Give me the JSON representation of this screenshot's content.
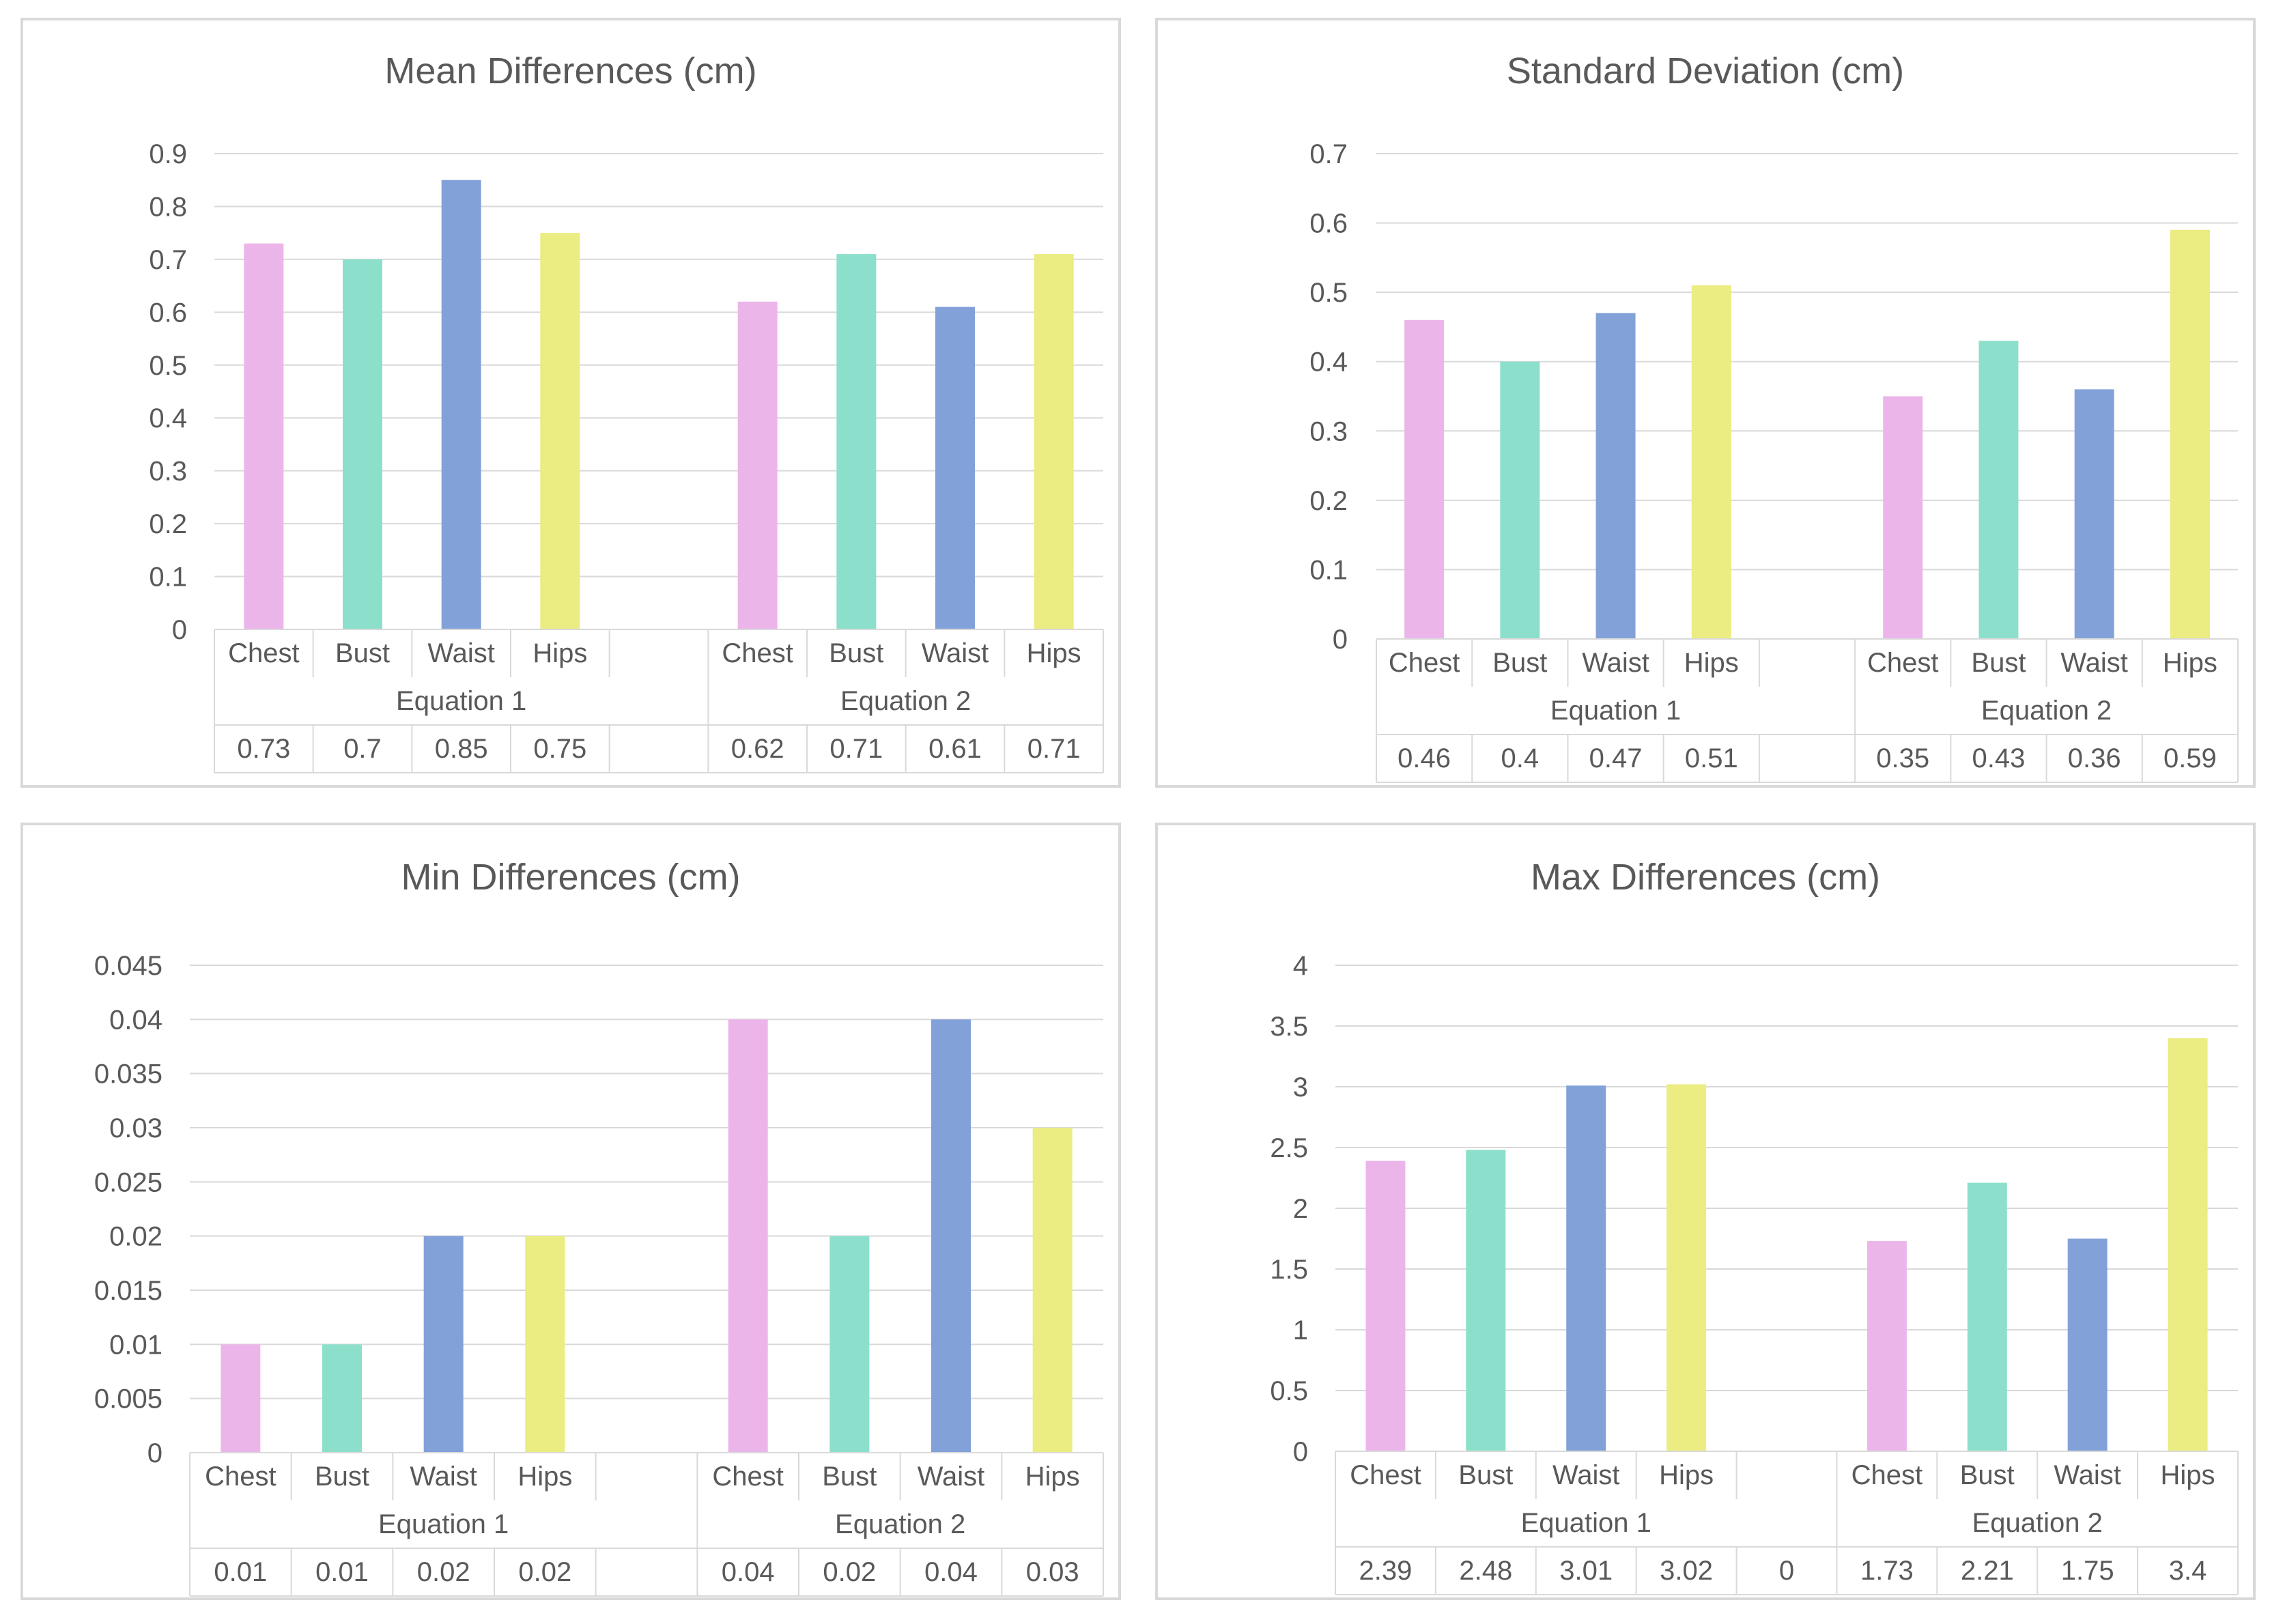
{
  "palette": {
    "Chest": "#ecb5ea",
    "Bust": "#8ce0cb",
    "Waist": "#83a1d9",
    "Hips": "#ebec81",
    "grid": "#d9d9d9",
    "text": "#595959"
  },
  "chart_data": [
    {
      "type": "bar",
      "title": "Mean Differences (cm)",
      "groups": [
        "Equation 1",
        "Equation 2"
      ],
      "categories": [
        "Chest",
        "Bust",
        "Waist",
        "Hips"
      ],
      "series": [
        {
          "name": "Equation 1",
          "values": [
            0.73,
            0.7,
            0.85,
            0.75
          ]
        },
        {
          "name": "Equation 2",
          "values": [
            0.62,
            0.71,
            0.61,
            0.71
          ]
        }
      ],
      "table": {
        "group1": [
          "0.73",
          "0.7",
          "0.85",
          "0.75"
        ],
        "gap": "",
        "group2": [
          "0.62",
          "0.71",
          "0.61",
          "0.71"
        ]
      },
      "ylim": [
        0,
        0.9
      ],
      "yticks": [
        "0",
        "0.1",
        "0.2",
        "0.3",
        "0.4",
        "0.5",
        "0.6",
        "0.7",
        "0.8",
        "0.9"
      ]
    },
    {
      "type": "bar",
      "title": "Standard Deviation (cm)",
      "groups": [
        "Equation 1",
        "Equation 2"
      ],
      "categories": [
        "Chest",
        "Bust",
        "Waist",
        "Hips"
      ],
      "series": [
        {
          "name": "Equation 1",
          "values": [
            0.46,
            0.4,
            0.47,
            0.51
          ]
        },
        {
          "name": "Equation 2",
          "values": [
            0.35,
            0.43,
            0.36,
            0.59
          ]
        }
      ],
      "table": {
        "group1": [
          "0.46",
          "0.4",
          "0.47",
          "0.51"
        ],
        "gap": "",
        "group2": [
          "0.35",
          "0.43",
          "0.36",
          "0.59"
        ]
      },
      "ylim": [
        0,
        0.7
      ],
      "yticks": [
        "0",
        "0.1",
        "0.2",
        "0.3",
        "0.4",
        "0.5",
        "0.6",
        "0.7"
      ]
    },
    {
      "type": "bar",
      "title": "Min Differences (cm)",
      "groups": [
        "Equation 1",
        "Equation 2"
      ],
      "categories": [
        "Chest",
        "Bust",
        "Waist",
        "Hips"
      ],
      "series": [
        {
          "name": "Equation 1",
          "values": [
            0.01,
            0.01,
            0.02,
            0.02
          ]
        },
        {
          "name": "Equation 2",
          "values": [
            0.04,
            0.02,
            0.04,
            0.03
          ]
        }
      ],
      "table": {
        "group1": [
          "0.01",
          "0.01",
          "0.02",
          "0.02"
        ],
        "gap": "",
        "group2": [
          "0.04",
          "0.02",
          "0.04",
          "0.03"
        ]
      },
      "ylim": [
        0,
        0.045
      ],
      "yticks": [
        "0",
        "0.005",
        "0.01",
        "0.015",
        "0.02",
        "0.025",
        "0.03",
        "0.035",
        "0.04",
        "0.045"
      ]
    },
    {
      "type": "bar",
      "title": "Max Differences (cm)",
      "groups": [
        "Equation 1",
        "Equation 2"
      ],
      "categories": [
        "Chest",
        "Bust",
        "Waist",
        "Hips"
      ],
      "series": [
        {
          "name": "Equation 1",
          "values": [
            2.39,
            2.48,
            3.01,
            3.02
          ]
        },
        {
          "name": "Equation 2",
          "values": [
            1.73,
            2.21,
            1.75,
            3.4
          ]
        }
      ],
      "table": {
        "group1": [
          "2.39",
          "2.48",
          "3.01",
          "3.02"
        ],
        "gap": "0",
        "group2": [
          "1.73",
          "2.21",
          "1.75",
          "3.4"
        ]
      },
      "ylim": [
        0,
        4
      ],
      "yticks": [
        "0",
        "0.5",
        "1",
        "1.5",
        "2",
        "2.5",
        "3",
        "3.5",
        "4"
      ]
    }
  ]
}
